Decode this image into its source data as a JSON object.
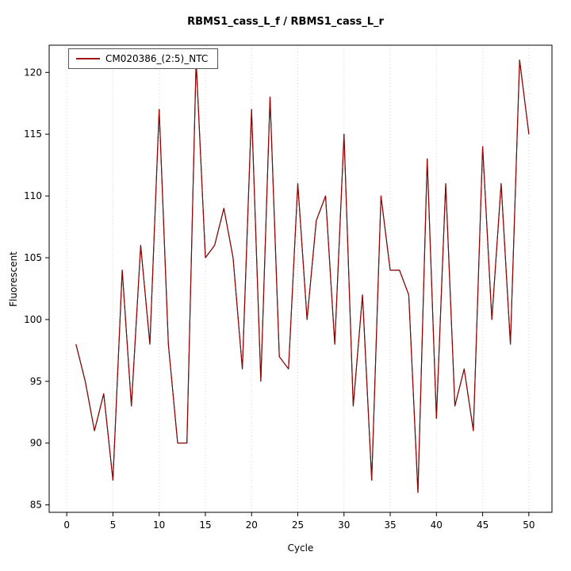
{
  "window": {
    "background": "#ffffff"
  },
  "chart_data": {
    "type": "line",
    "title": "RBMS1_cass_L_f / RBMS1_cass_L_r",
    "xlabel": "Cycle",
    "ylabel": "Fluorescent",
    "legend": {
      "position": "top-left",
      "entries": [
        "CM020386_(2:5)_NTC"
      ]
    },
    "x": [
      1,
      2,
      3,
      4,
      5,
      6,
      7,
      8,
      9,
      10,
      11,
      12,
      13,
      14,
      15,
      16,
      17,
      18,
      19,
      20,
      21,
      22,
      23,
      24,
      25,
      26,
      27,
      28,
      29,
      30,
      31,
      32,
      33,
      34,
      35,
      36,
      37,
      38,
      39,
      40,
      41,
      42,
      43,
      44,
      45,
      46,
      47,
      48,
      49,
      50
    ],
    "series": [
      {
        "name": "CM020386_(2:5)_NTC",
        "color": "#cc0000",
        "shadow_color": "#000000",
        "values": [
          98,
          95,
          91,
          94,
          87,
          104,
          93,
          106,
          98,
          117,
          98,
          90,
          90,
          121,
          105,
          106,
          109,
          105,
          96,
          117,
          95,
          118,
          97,
          96,
          111,
          100,
          108,
          110,
          98,
          115,
          93,
          102,
          87,
          110,
          104,
          104,
          102,
          86,
          113,
          92,
          111,
          93,
          96,
          91,
          114,
          100,
          111,
          98,
          121,
          115
        ]
      }
    ],
    "xticks": [
      0,
      5,
      10,
      15,
      20,
      25,
      30,
      35,
      40,
      45,
      50
    ],
    "yticks": [
      85,
      90,
      95,
      100,
      105,
      110,
      115,
      120
    ],
    "xlim": [
      -1.9,
      52.5
    ],
    "ylim": [
      84.4,
      122.2
    ],
    "grid": {
      "vertical": true,
      "horizontal": false,
      "style": "dotted",
      "color": "#d3d3d3"
    },
    "axis_color": "#000000"
  }
}
